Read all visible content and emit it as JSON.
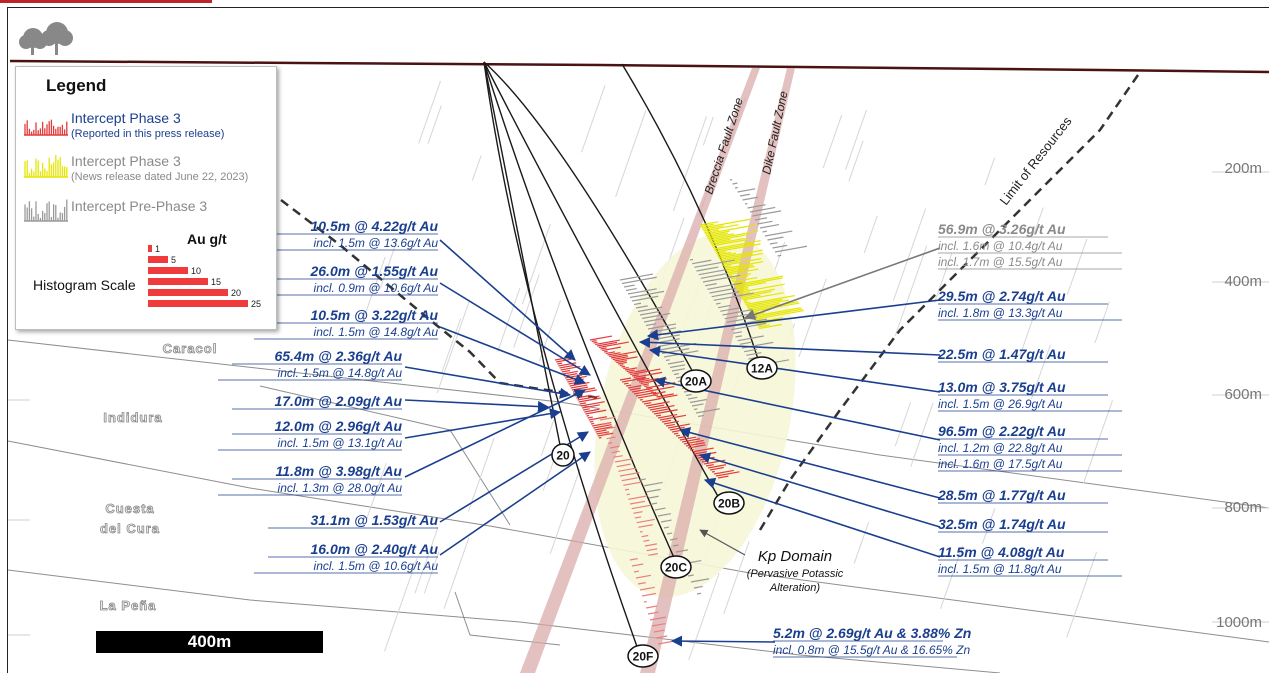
{
  "legend": {
    "title": "Legend",
    "items": [
      {
        "label": "Intercept Phase 3",
        "sub": "(Reported in this press release)",
        "color": "#e23b3b"
      },
      {
        "label": "Intercept Phase 3",
        "sub": "(News release dated June 22, 2023)",
        "color": "#e6e600"
      },
      {
        "label": "Intercept Pre-Phase 3",
        "sub": "",
        "color": "#9a9a9a"
      }
    ],
    "histogram_title": "Histogram Scale",
    "unit_label": "Au g/t",
    "scale": [
      1,
      5,
      10,
      15,
      20,
      25
    ]
  },
  "scale_bar_label": "400m",
  "depths": [
    "200m",
    "400m",
    "600m",
    "800m",
    "1000m"
  ],
  "units": [
    "Caracol",
    "Indidura",
    "Cuesta",
    "del Cura",
    "La Peña"
  ],
  "faults": [
    {
      "label": "Breccia Fault Zone"
    },
    {
      "label": "Dike Fault Zone"
    },
    {
      "label": "Limit of Resources"
    }
  ],
  "holes": [
    "20",
    "20A",
    "12A",
    "20B",
    "20C",
    "20F"
  ],
  "domain_label": {
    "title": "Kp Domain",
    "sub1": "(Pervasive Potassic",
    "sub2": "Alteration)"
  },
  "intercepts": [
    {
      "main": "10.5m @ 4.22g/t Au",
      "incl": [
        "incl. 1.5m @ 13.6g/t Au"
      ],
      "style": "blue"
    },
    {
      "main": "26.0m @ 1.55g/t Au",
      "incl": [
        "incl. 0.9m @ 10.6g/t Au"
      ],
      "style": "blue"
    },
    {
      "main": "10.5m @ 3.22g/t Au",
      "incl": [
        "incl. 1.5m @ 14.8g/t Au"
      ],
      "style": "blue"
    },
    {
      "main": "65.4m @ 2.36g/t Au",
      "incl": [
        "incl. 1.5m @ 14.8g/t Au"
      ],
      "style": "blue"
    },
    {
      "main": "17.0m @ 2.09g/t Au",
      "incl": [],
      "style": "blue"
    },
    {
      "main": "12.0m @ 2.96g/t Au",
      "incl": [
        "incl. 1.5m @ 13.1g/t Au"
      ],
      "style": "blue"
    },
    {
      "main": "11.8m @ 3.98g/t Au",
      "incl": [
        "incl. 1.3m @ 28.0g/t Au"
      ],
      "style": "blue"
    },
    {
      "main": "31.1m @ 1.53g/t Au",
      "incl": [],
      "style": "blue"
    },
    {
      "main": "16.0m @ 2.40g/t Au",
      "incl": [
        "incl. 1.5m @ 10.6g/t Au"
      ],
      "style": "blue"
    },
    {
      "main": "56.9m @ 3.26g/t Au",
      "incl": [
        "incl. 1.6m @ 10.4g/t Au",
        "incl. 1.7m @ 15.5g/t Au"
      ],
      "style": "grey"
    },
    {
      "main": "29.5m @ 2.74g/t Au",
      "incl": [
        "incl. 1.8m @ 13.3g/t Au"
      ],
      "style": "blue"
    },
    {
      "main": "22.5m @ 1.47g/t Au",
      "incl": [],
      "style": "blue"
    },
    {
      "main": "13.0m @ 3.75g/t Au",
      "incl": [
        "incl. 1.5m @ 26.9g/t Au"
      ],
      "style": "blue"
    },
    {
      "main": "96.5m @ 2.22g/t Au",
      "incl": [
        "incl. 1.2m @ 22.8g/t Au",
        "incl. 1.6m @ 17.5g/t Au"
      ],
      "style": "blue"
    },
    {
      "main": "28.5m @ 1.77g/t Au",
      "incl": [],
      "style": "blue"
    },
    {
      "main": "32.5m @ 1.74g/t Au",
      "incl": [],
      "style": "blue"
    },
    {
      "main": "11.5m @ 4.08g/t Au",
      "incl": [
        "incl. 1.5m @ 11.8g/t Au"
      ],
      "style": "blue"
    },
    {
      "main": "5.2m @ 2.69g/t Au & 3.88% Zn",
      "incl": [
        "incl. 0.8m @ 15.5g/t Au & 16.65% Zn"
      ],
      "style": "blue"
    }
  ]
}
